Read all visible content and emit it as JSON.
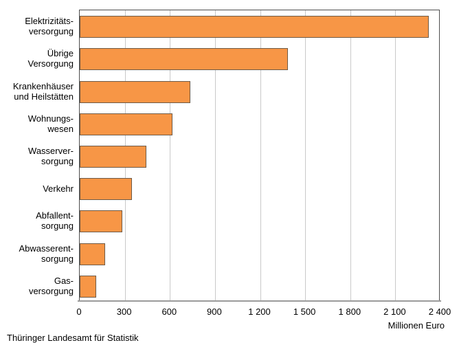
{
  "chart_data": {
    "type": "bar",
    "orientation": "horizontal",
    "title": "",
    "categories": [
      "Elektrizitäts-\nversorgung",
      "Übrige\nVersorgung",
      "Krankenhäuser\nund Heilstätten",
      "Wohnungs-\nwesen",
      "Wasserver-\nsorgung",
      "Verkehr",
      "Abfallent-\nsorgung",
      "Abwasserent-\nsorgung",
      "Gas-\nversorgung"
    ],
    "values": [
      2320,
      1385,
      735,
      615,
      445,
      345,
      285,
      170,
      110
    ],
    "xlabel": "Millionen Euro",
    "ylabel": "",
    "xlim": [
      0,
      2400
    ],
    "tick_step": 300,
    "tick_labels": [
      "0",
      "300",
      "600",
      "900",
      "1 200",
      "1 500",
      "1 800",
      "2 100",
      "2 400"
    ],
    "grid": true,
    "legend": false,
    "source": "Thüringer Landesamt für Statistik",
    "colors": {
      "bar_fill": "#F79646",
      "bar_border": "#6E5A46",
      "gridline": "#C9C9C9",
      "frame": "#4D4D4D",
      "axis_line": "#9B9B9B",
      "text": "#000000",
      "background": "#FFFFFF"
    }
  }
}
